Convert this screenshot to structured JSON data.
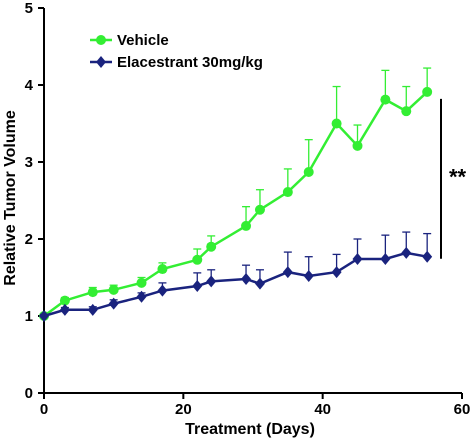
{
  "chart_data": {
    "type": "line",
    "title": "",
    "xlabel": "Treatment (Days)",
    "ylabel": "Relative Tumor Volume",
    "xlim": [
      0,
      60
    ],
    "ylim": [
      0,
      5
    ],
    "xticks": [
      0,
      20,
      40,
      60
    ],
    "yticks": [
      0,
      1,
      2,
      3,
      4,
      5
    ],
    "grid": false,
    "legend_position": "top-left",
    "series": [
      {
        "name": "Vehicle",
        "color": "#33ee33",
        "marker": "circle",
        "x": [
          0,
          3,
          7,
          10,
          14,
          17,
          22,
          24,
          29,
          31,
          35,
          38,
          42,
          45,
          49,
          52,
          55
        ],
        "y": [
          1.0,
          1.2,
          1.31,
          1.34,
          1.43,
          1.61,
          1.73,
          1.9,
          2.17,
          2.38,
          2.61,
          2.87,
          3.5,
          3.21,
          3.81,
          3.66,
          3.91
        ],
        "err": [
          0.02,
          0.04,
          0.06,
          0.06,
          0.07,
          0.08,
          0.14,
          0.14,
          0.25,
          0.26,
          0.3,
          0.42,
          0.48,
          0.27,
          0.38,
          0.32,
          0.31
        ]
      },
      {
        "name": "Elacestrant 30mg/kg",
        "color": "#1a237e",
        "marker": "diamond",
        "x": [
          0,
          3,
          7,
          10,
          14,
          17,
          22,
          24,
          29,
          31,
          35,
          38,
          42,
          45,
          49,
          52,
          55
        ],
        "y": [
          1.0,
          1.08,
          1.08,
          1.16,
          1.25,
          1.33,
          1.39,
          1.45,
          1.48,
          1.42,
          1.57,
          1.52,
          1.57,
          1.74,
          1.74,
          1.82,
          1.77
        ],
        "err": [
          0.02,
          0.03,
          0.04,
          0.05,
          0.05,
          0.1,
          0.17,
          0.15,
          0.18,
          0.18,
          0.26,
          0.25,
          0.23,
          0.26,
          0.31,
          0.27,
          0.3
        ]
      }
    ],
    "annotations": [
      {
        "text": "**",
        "type": "significance-bracket",
        "x": 57,
        "y_range": [
          1.77,
          3.91
        ]
      }
    ]
  }
}
